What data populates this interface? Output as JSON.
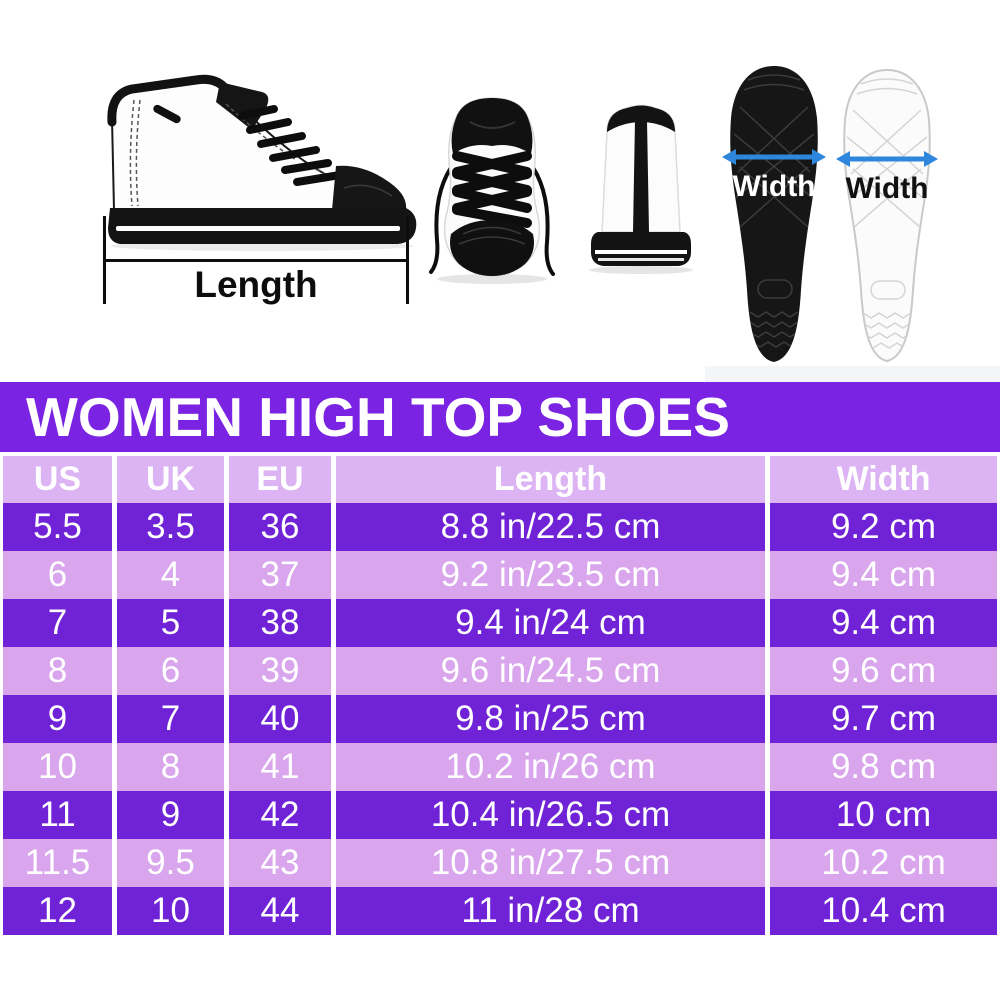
{
  "measure_diagram": {
    "length_label": "Length",
    "black_sole_width_label": "Width",
    "white_sole_width_label": "Width"
  },
  "chart_data": {
    "type": "table",
    "title": "WOMEN HIGH TOP SHOES",
    "columns": [
      "US",
      "UK",
      "EU",
      "Length",
      "Width"
    ],
    "rows": [
      [
        "5.5",
        "3.5",
        "36",
        "8.8 in/22.5 cm",
        "9.2 cm"
      ],
      [
        "6",
        "4",
        "37",
        "9.2 in/23.5 cm",
        "9.4 cm"
      ],
      [
        "7",
        "5",
        "38",
        "9.4 in/24 cm",
        "9.4 cm"
      ],
      [
        "8",
        "6",
        "39",
        "9.6 in/24.5 cm",
        "9.6 cm"
      ],
      [
        "9",
        "7",
        "40",
        "9.8 in/25 cm",
        "9.7 cm"
      ],
      [
        "10",
        "8",
        "41",
        "10.2 in/26 cm",
        "9.8 cm"
      ],
      [
        "11",
        "9",
        "42",
        "10.4 in/26.5 cm",
        "10 cm"
      ],
      [
        "11.5",
        "9.5",
        "43",
        "10.8 in/27.5 cm",
        "10.2 cm"
      ],
      [
        "12",
        "10",
        "44",
        "11 in/28 cm",
        "10.4 cm"
      ]
    ]
  },
  "colors": {
    "title_bg": "#7a23e2",
    "row_dark": "#7023d6",
    "row_light": "#d9a6ee",
    "header_bg": "#dcb3f3",
    "table_text": "#ffffff",
    "arrow_blue": "#2e86dd"
  }
}
